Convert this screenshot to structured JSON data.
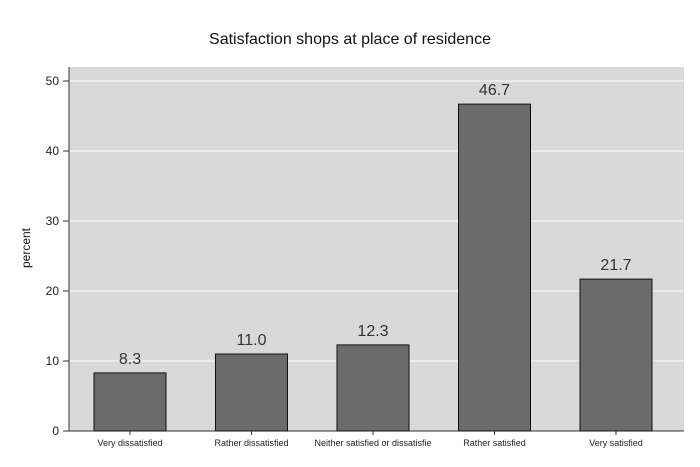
{
  "chart_data": {
    "type": "bar",
    "title": "Satisfaction shops at place of residence",
    "xlabel": "",
    "ylabel": "percent",
    "categories": [
      "Very dissatisfied",
      "Rather dissatisfied",
      "Neither satisfied or dissatisfie",
      "Rather satisfied",
      "Very satisfied"
    ],
    "values": [
      8.3,
      11.0,
      12.3,
      46.7,
      21.7
    ],
    "value_labels": [
      "8.3",
      "11.0",
      "12.3",
      "46.7",
      "21.7"
    ],
    "ylim": [
      0,
      52
    ],
    "yticks": [
      0,
      10,
      20,
      30,
      40,
      50
    ],
    "grid": true,
    "legend": "none",
    "colors": {
      "plot_bg": "#d9d9d9",
      "bar": "#6b6b6b",
      "bar_edge": "#111111",
      "grid": "#ffffff"
    }
  }
}
